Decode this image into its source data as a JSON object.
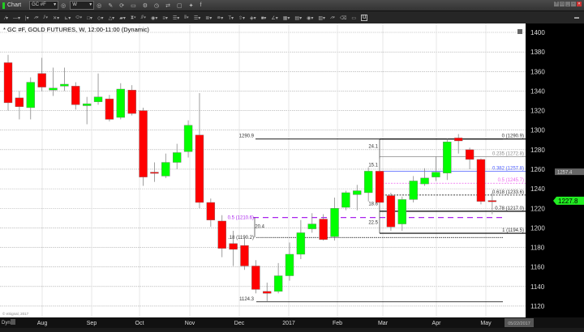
{
  "window": {
    "title": "Chart",
    "symbol": "GC #F",
    "interval": "W"
  },
  "toolbar_icons": [
    "settings-icon",
    "pencil-icon",
    "refresh-icon",
    "link-icon",
    "gear-icon",
    "clock-icon",
    "share-icon",
    "chat-icon",
    "twitter-icon",
    "facebook-icon"
  ],
  "chart_header": "* GC #F, GOLD FUTURES, W, 12:00-11:00 (Dynamic)",
  "copyright": "© eSignal, 2017",
  "bottom_left": "Dyn",
  "current_date": "05/22/2017",
  "chart_data": {
    "type": "candlestick",
    "title": "* GC #F, GOLD FUTURES, W, 12:00-11:00 (Dynamic)",
    "ylim": [
      1120,
      1400
    ],
    "y_ticks": [
      1400,
      1380,
      1360,
      1340,
      1320,
      1300,
      1280,
      1260,
      1240,
      1220,
      1200,
      1180,
      1160,
      1140,
      1120
    ],
    "x_tick_labels": [
      "Aug",
      "Sep",
      "Oct",
      "Nov",
      "Dec",
      "2017",
      "Feb",
      "Mar",
      "Apr",
      "May"
    ],
    "grid": true,
    "colors": {
      "up": "#00ff00",
      "down": "#ff0000"
    },
    "candles": [
      [
        1369,
        1377,
        1320,
        1328
      ],
      [
        1333,
        1340,
        1311,
        1324
      ],
      [
        1323,
        1354,
        1311,
        1349
      ],
      [
        1358,
        1374,
        1340,
        1344
      ],
      [
        1341,
        1364,
        1335,
        1343
      ],
      [
        1345,
        1364,
        1340,
        1347
      ],
      [
        1345,
        1349,
        1321,
        1326
      ],
      [
        1325,
        1334,
        1306,
        1327
      ],
      [
        1329,
        1358,
        1326,
        1334
      ],
      [
        1332,
        1336,
        1309,
        1311
      ],
      [
        1313,
        1348,
        1311,
        1342
      ],
      [
        1341,
        1346,
        1315,
        1317
      ],
      [
        1320,
        1323,
        1243,
        1252
      ],
      [
        1257,
        1267,
        1247,
        1256
      ],
      [
        1253,
        1276,
        1251,
        1267
      ],
      [
        1267,
        1286,
        1260,
        1277
      ],
      [
        1278,
        1310,
        1272,
        1305
      ],
      [
        1295,
        1338,
        1220,
        1226
      ],
      [
        1226,
        1230,
        1201,
        1208
      ],
      [
        1207,
        1213,
        1170,
        1179
      ],
      [
        1184,
        1197,
        1161,
        1178
      ],
      [
        1182,
        1190,
        1157,
        1161
      ],
      [
        1161,
        1167,
        1133,
        1137
      ],
      [
        1135,
        1144,
        1124.3,
        1133
      ],
      [
        1135,
        1164,
        1133,
        1151
      ],
      [
        1151,
        1185,
        1146,
        1173
      ],
      [
        1173,
        1208,
        1168,
        1195
      ],
      [
        1199,
        1215,
        1195,
        1204
      ],
      [
        1209,
        1214,
        1187,
        1188
      ],
      [
        1191,
        1231,
        1187,
        1220
      ],
      [
        1221,
        1238,
        1218,
        1236
      ],
      [
        1234,
        1244,
        1218,
        1238
      ],
      [
        1236,
        1262,
        1227,
        1258
      ],
      [
        1258,
        1271,
        1223,
        1226
      ],
      [
        1233,
        1236,
        1197,
        1201
      ],
      [
        1204,
        1232,
        1197,
        1229
      ],
      [
        1229,
        1253,
        1226,
        1248
      ],
      [
        1245,
        1261,
        1243,
        1251
      ],
      [
        1252,
        1273,
        1248,
        1257
      ],
      [
        1256,
        1291,
        1249,
        1288
      ],
      [
        1292,
        1296,
        1276,
        1289
      ],
      [
        1280,
        1282,
        1260,
        1270
      ],
      [
        1270,
        1271,
        1224,
        1227
      ],
      [
        1228,
        1236,
        1214,
        1227.8
      ]
    ],
    "last_price": "1227.8",
    "marker_price": "1257.4",
    "fib_right": [
      {
        "label": "0 (1290.9)",
        "price": 1290.9,
        "color": "#000000"
      },
      {
        "label": "0.235 (1272.8)",
        "price": 1272.8,
        "color": "#888888"
      },
      {
        "label": "0.382 (1257.8)",
        "price": 1257.8,
        "color": "#4a5cff"
      },
      {
        "label": "0.5 (1245.7)",
        "price": 1245.7,
        "color": "#ee66ee"
      },
      {
        "label": "0.618 (1233.6)",
        "price": 1233.6,
        "color": "#000000"
      },
      {
        "label": "0.78 (1217.0)",
        "price": 1217.0,
        "color": "#000000"
      },
      {
        "label": "1 (1194.5)",
        "price": 1194.5,
        "color": "#000000"
      }
    ],
    "fib_left": [
      {
        "label": "1290.9",
        "price": 1290.9,
        "color": "#000000"
      },
      {
        "label": "0.5 (1210.6)",
        "price": 1210.6,
        "color": "#aa22ee"
      },
      {
        "label": ".18 (1190.2)",
        "price": 1190.2,
        "color": "#000000"
      },
      {
        "label": "1124.3",
        "price": 1124.3,
        "color": "#000000"
      }
    ],
    "measurements": [
      {
        "label": "20.4",
        "price": 1200
      },
      {
        "label": "24.1",
        "price": 1282
      },
      {
        "label": "15.1",
        "price": 1263
      },
      {
        "label": "18.6",
        "price": 1223
      },
      {
        "label": "22.5",
        "price": 1204
      }
    ]
  }
}
